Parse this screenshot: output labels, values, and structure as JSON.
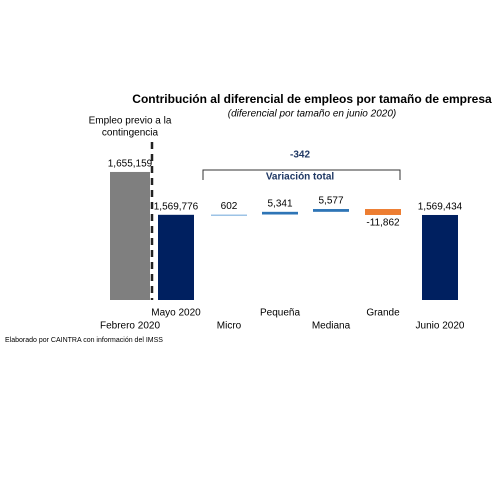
{
  "chart_data": {
    "type": "waterfall",
    "title": "Contribución al diferencial de empleos por tamaño de empresa",
    "subtitle": "(diferencial por tamaño en junio 2020)",
    "categories": [
      "Febrero 2020",
      "Mayo 2020",
      "Micro",
      "Pequeña",
      "Mediana",
      "Grande",
      "Junio 2020"
    ],
    "values": [
      1655159,
      1569776,
      602,
      5341,
      5577,
      -11862,
      1569434
    ],
    "value_labels": [
      "1,655,159",
      "1,569,776",
      "602",
      "5,341",
      "5,577",
      "-11,862",
      "1,569,434"
    ],
    "measure": [
      "absolute",
      "absolute",
      "relative",
      "relative",
      "relative",
      "relative",
      "absolute"
    ],
    "colors": [
      "#7f7f7f",
      "#002060",
      "#9dc3e6",
      "#2e75b6",
      "#2e75b6",
      "#ed7d31",
      "#002060"
    ],
    "ylim": [
      1400000,
      1680000
    ],
    "annotations": {
      "pre_contingency": [
        "Empleo previo a la",
        "contingencia"
      ],
      "total_variation": -342,
      "total_variation_label": "Variación total"
    },
    "source": "Elaborado por CAINTRA con información del IMSS"
  }
}
